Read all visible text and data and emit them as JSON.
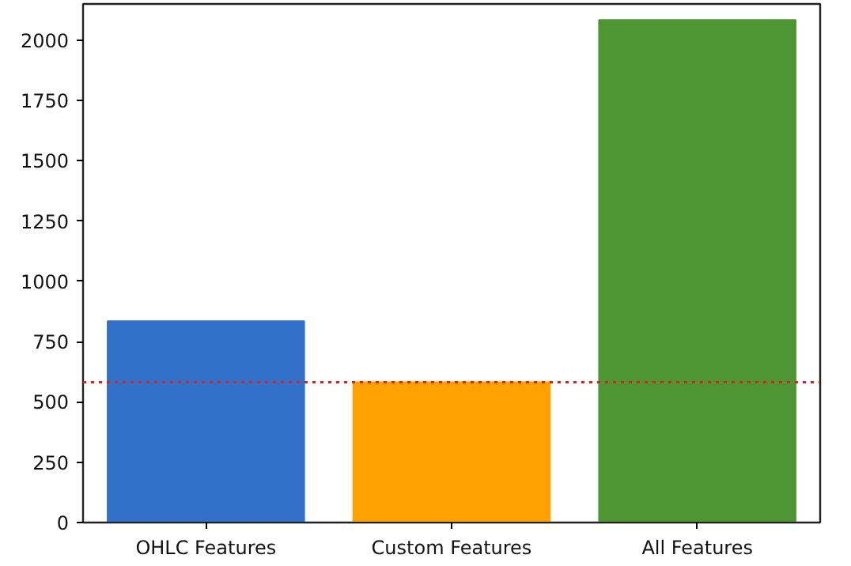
{
  "chart_data": {
    "type": "bar",
    "categories": [
      "OHLC Features",
      "Custom Features",
      "All Features"
    ],
    "values": [
      835,
      582,
      2084
    ],
    "colors": [
      "#3171c9",
      "#ffa100",
      "#4e9633"
    ],
    "ylim": [
      0,
      2150
    ],
    "yticks": [
      0,
      250,
      500,
      750,
      1000,
      1250,
      1500,
      1750,
      2000
    ],
    "ref_lines": [
      {
        "axis": "y",
        "value": 582,
        "color": "#e02020",
        "line_style": "dotted"
      }
    ],
    "grid": false
  }
}
